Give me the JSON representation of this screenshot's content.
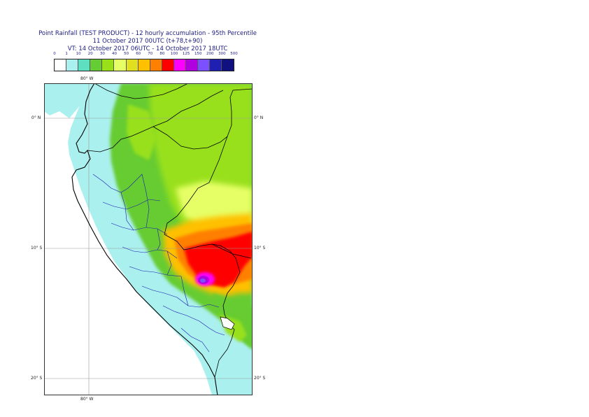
{
  "title": {
    "line1": "Point Rainfall (TEST PRODUCT) - 12 hourly accumulation - 95th Percentile",
    "line2": "11 October 2017 00UTC (t+78,t+90)",
    "line3": "VT: 14 October 2017 06UTC - 14 October 2017 18UTC"
  },
  "legend": {
    "thresholds": [
      "0",
      "1",
      "10",
      "20",
      "30",
      "40",
      "50",
      "60",
      "70",
      "80",
      "100",
      "125",
      "150",
      "200",
      "300",
      "500"
    ],
    "colors": [
      "#ffffff",
      "#aaf0ee",
      "#5ee0c0",
      "#66cc33",
      "#99e01a",
      "#e6ff66",
      "#e0e020",
      "#ffc000",
      "#ff8000",
      "#ff0000",
      "#ff00ff",
      "#b000e0",
      "#7a50ff",
      "#2020b0",
      "#101080"
    ]
  },
  "map": {
    "lon_labels": [
      "80° W",
      "80° W"
    ],
    "lat_labels_left": [
      "0° N",
      "10° S",
      "20° S"
    ],
    "lat_labels_right": [
      "0° N",
      "10° S",
      "20° S"
    ]
  }
}
